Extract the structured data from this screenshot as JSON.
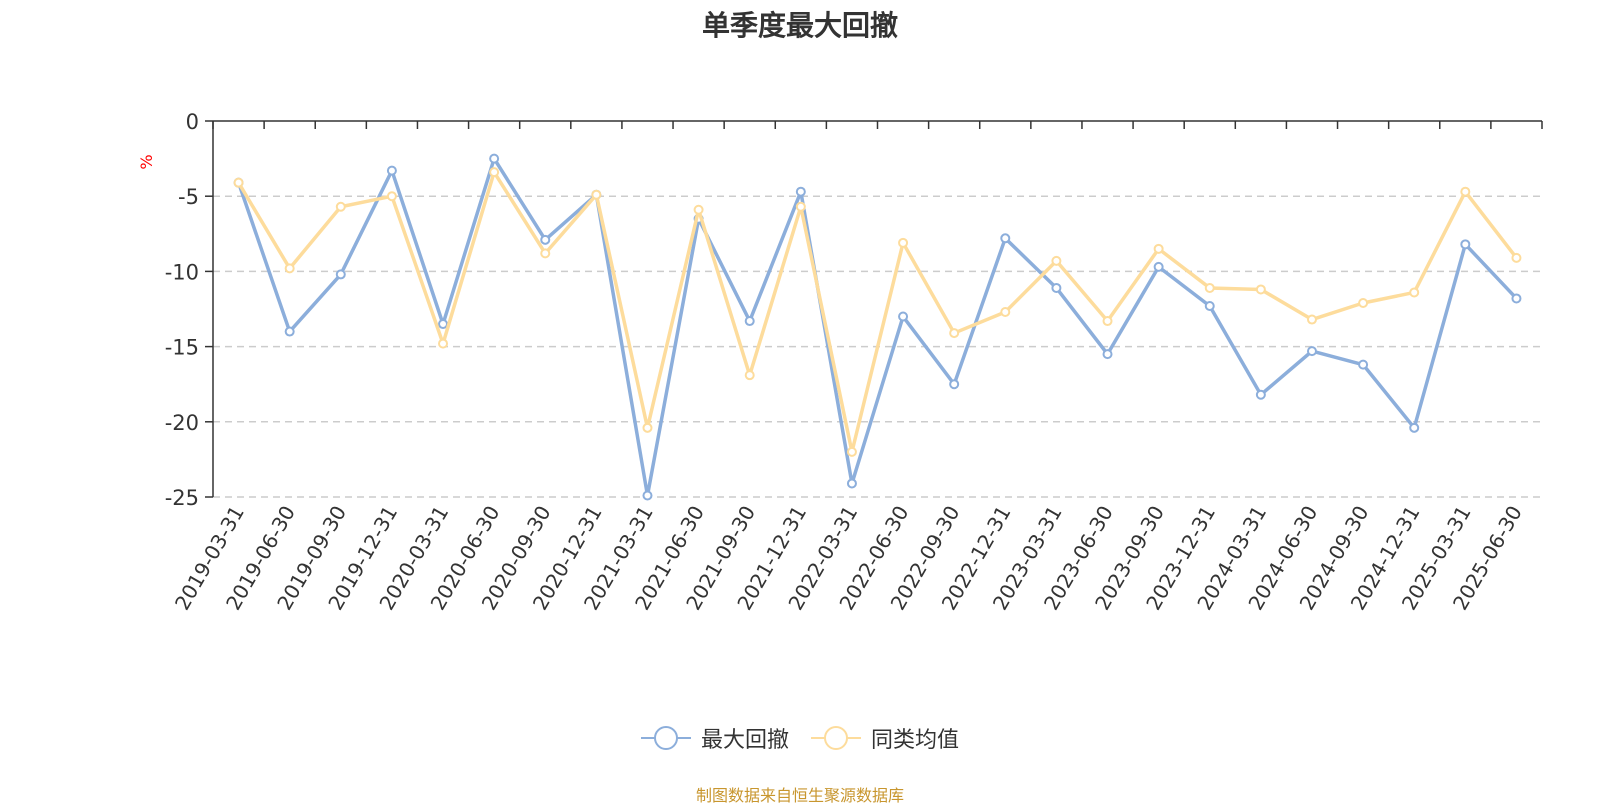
{
  "chart_data": {
    "type": "line",
    "title": "单季度最大回撤",
    "ylabel": "%",
    "ylim": [
      -25,
      0
    ],
    "yticks": [
      0,
      -5,
      -10,
      -15,
      -20,
      -25
    ],
    "grid": true,
    "legend_position": "bottom-center",
    "categories": [
      "2019-03-31",
      "2019-06-30",
      "2019-09-30",
      "2019-12-31",
      "2020-03-31",
      "2020-06-30",
      "2020-09-30",
      "2020-12-31",
      "2021-03-31",
      "2021-06-30",
      "2021-09-30",
      "2021-12-31",
      "2022-03-31",
      "2022-06-30",
      "2022-09-30",
      "2022-12-31",
      "2023-03-31",
      "2023-06-30",
      "2023-09-30",
      "2023-12-31",
      "2024-03-31",
      "2024-06-30",
      "2024-09-30",
      "2024-12-31",
      "2025-03-31",
      "2025-06-30"
    ],
    "series": [
      {
        "name": "最大回撤",
        "color": "#8caedb",
        "values": [
          -4.1,
          -14.0,
          -10.2,
          -3.3,
          -13.5,
          -2.5,
          -7.9,
          -4.9,
          -24.9,
          -6.5,
          -13.3,
          -4.7,
          -24.1,
          -13.0,
          -17.5,
          -7.8,
          -11.1,
          -15.5,
          -9.7,
          -12.3,
          -18.2,
          -15.3,
          -16.2,
          -20.4,
          -8.2,
          -11.8
        ]
      },
      {
        "name": "同类均值",
        "color": "#fddc9c",
        "values": [
          -4.1,
          -9.8,
          -5.7,
          -5.0,
          -14.8,
          -3.4,
          -8.8,
          -4.9,
          -20.4,
          -5.9,
          -16.9,
          -5.7,
          -22.0,
          -8.1,
          -14.1,
          -12.7,
          -9.3,
          -13.3,
          -8.5,
          -11.1,
          -11.2,
          -13.2,
          -12.1,
          -11.4,
          -4.7,
          -9.1
        ]
      }
    ]
  },
  "source_note": "制图数据来自恒生聚源数据库"
}
